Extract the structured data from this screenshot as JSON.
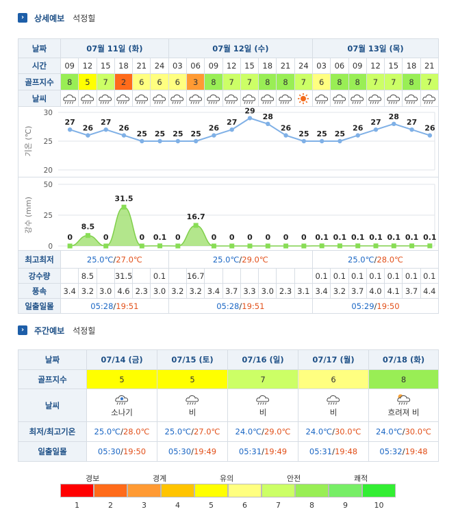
{
  "detail": {
    "section_title": "상세예보",
    "location": "석정힐",
    "labels": {
      "date": "날짜",
      "time": "시간",
      "golf": "골프지수",
      "weather": "날씨",
      "temp_axis": "기온 (℃)",
      "rain_axis": "강수 (mm)",
      "minmax": "최고최저",
      "rain": "강수량",
      "wind": "풍속",
      "sun": "일출일몰"
    },
    "dates": [
      "07월 11일 (화)",
      "07월 12일 (수)",
      "07월 13일 (목)"
    ],
    "times": [
      "09",
      "12",
      "15",
      "18",
      "21",
      "24",
      "03",
      "06",
      "09",
      "12",
      "15",
      "18",
      "21",
      "24",
      "03",
      "06",
      "09",
      "12",
      "15",
      "18",
      "21"
    ],
    "golf": [
      "8",
      "5",
      "7",
      "2",
      "6",
      "6",
      "6",
      "3",
      "8",
      "7",
      "7",
      "8",
      "8",
      "7",
      "6",
      "8",
      "8",
      "7",
      "7",
      "8",
      "7"
    ],
    "weather_icons": [
      "cloud-rain-icon",
      "cloud-rain-icon",
      "cloud-rain-icon",
      "cloud-rain-icon",
      "cloud-rain-icon",
      "cloud-rain-icon",
      "cloud-rain-icon",
      "cloud-rain-icon",
      "cloud-rain-icon",
      "cloud-rain-icon",
      "cloud-rain-icon",
      "cloud-rain-icon",
      "cloud-rain-icon",
      "sun-icon",
      "cloud-rain-icon",
      "cloud-rain-icon",
      "cloud-rain-icon",
      "cloud-rain-icon",
      "cloud-rain-icon",
      "cloud-rain-icon",
      "cloud-rain-icon"
    ],
    "minmax": [
      {
        "min": "25.0℃",
        "max": "27.0℃"
      },
      {
        "min": "25.0℃",
        "max": "29.0℃"
      },
      {
        "min": "25.0℃",
        "max": "28.0℃"
      }
    ],
    "rain": [
      "",
      "8.5",
      "",
      "31.5",
      "",
      "0.1",
      "",
      "16.7",
      "",
      "",
      "",
      "",
      "",
      "",
      "0.1",
      "0.1",
      "0.1",
      "0.1",
      "0.1",
      "0.1",
      "0.1"
    ],
    "wind": [
      "3.4",
      "3.2",
      "3.0",
      "4.6",
      "2.3",
      "3.0",
      "3.2",
      "3.2",
      "3.4",
      "3.7",
      "3.3",
      "3.0",
      "2.3",
      "3.1",
      "3.4",
      "3.2",
      "3.7",
      "4.0",
      "4.1",
      "3.7",
      "4.4"
    ],
    "sun": [
      {
        "rise": "05:28",
        "set": "19:51"
      },
      {
        "rise": "05:28",
        "set": "19:51"
      },
      {
        "rise": "05:29",
        "set": "19:50"
      }
    ]
  },
  "chart_data": [
    {
      "type": "line",
      "ylabel": "기온 (℃)",
      "ylim": [
        20,
        30
      ],
      "yticks": [
        "20",
        "25",
        "30"
      ],
      "x": [
        "09",
        "12",
        "15",
        "18",
        "21",
        "24",
        "03",
        "06",
        "09",
        "12",
        "15",
        "18",
        "21",
        "24",
        "03",
        "06",
        "09",
        "12",
        "15",
        "18",
        "21"
      ],
      "values": [
        27,
        26,
        27,
        26,
        25,
        25,
        25,
        25,
        26,
        27,
        29,
        28,
        26,
        25,
        25,
        25,
        26,
        27,
        28,
        27,
        26
      ],
      "labels": [
        "27",
        "26",
        "27",
        "26",
        "25",
        "25",
        "25",
        "25",
        "26",
        "27",
        "29",
        "28",
        "26",
        "25",
        "25",
        "25",
        "26",
        "27",
        "28",
        "27",
        "26"
      ],
      "color": "#7fb0e6"
    },
    {
      "type": "area",
      "ylabel": "강수 (mm)",
      "ylim": [
        0,
        50
      ],
      "yticks": [
        "0",
        "25",
        "50"
      ],
      "x": [
        "09",
        "12",
        "15",
        "18",
        "21",
        "24",
        "03",
        "06",
        "09",
        "12",
        "15",
        "18",
        "21",
        "24",
        "03",
        "06",
        "09",
        "12",
        "15",
        "18",
        "21"
      ],
      "values": [
        0,
        8.5,
        0,
        31.5,
        0,
        0.1,
        0,
        16.7,
        0,
        0,
        0,
        0,
        0,
        0,
        0.1,
        0.1,
        0.1,
        0.1,
        0.1,
        0.1,
        0.1
      ],
      "labels": [
        "0",
        "8.5",
        "0",
        "31.5",
        "0",
        "0.1",
        "0",
        "16.7",
        "0",
        "0",
        "0",
        "0",
        "0",
        "0",
        "0.1",
        "0.1",
        "0.1",
        "0.1",
        "0.1",
        "0.1",
        "0.1"
      ],
      "color": "#99dd66"
    }
  ],
  "weekly": {
    "section_title": "주간예보",
    "location": "석정힐",
    "labels": {
      "date": "날짜",
      "golf": "골프지수",
      "weather": "날씨",
      "minmax": "최저/최고기온",
      "sun": "일출일몰"
    },
    "days": [
      {
        "date": "07/14 (금)",
        "golf": "5",
        "icon": "shower-icon",
        "desc": "소나기",
        "min": "25.0℃",
        "max": "28.0℃",
        "rise": "05:30",
        "set": "19:50"
      },
      {
        "date": "07/15 (토)",
        "golf": "5",
        "icon": "cloud-rain-icon",
        "desc": "비",
        "min": "25.0℃",
        "max": "27.0℃",
        "rise": "05:30",
        "set": "19:49"
      },
      {
        "date": "07/16 (일)",
        "golf": "7",
        "icon": "cloud-rain-icon",
        "desc": "비",
        "min": "24.0℃",
        "max": "29.0℃",
        "rise": "05:31",
        "set": "19:49"
      },
      {
        "date": "07/17 (월)",
        "golf": "6",
        "icon": "cloud-rain-icon",
        "desc": "비",
        "min": "24.0℃",
        "max": "30.0℃",
        "rise": "05:31",
        "set": "19:48"
      },
      {
        "date": "07/18 (화)",
        "golf": "8",
        "icon": "sun-cloud-rain-icon",
        "desc": "흐려져 비",
        "min": "24.0℃",
        "max": "30.0℃",
        "rise": "05:32",
        "set": "19:48"
      }
    ]
  },
  "legend": {
    "captions": [
      "경보",
      "경계",
      "유의",
      "안전",
      "쾌적"
    ],
    "numbers": [
      "1",
      "2",
      "3",
      "4",
      "5",
      "6",
      "7",
      "8",
      "9",
      "10"
    ],
    "colors": [
      "#ff0000",
      "#ff6b1a",
      "#ff9a33",
      "#ffc400",
      "#ffff00",
      "#ffff80",
      "#ccff66",
      "#99ee55",
      "#77ee66",
      "#33ee33"
    ]
  }
}
